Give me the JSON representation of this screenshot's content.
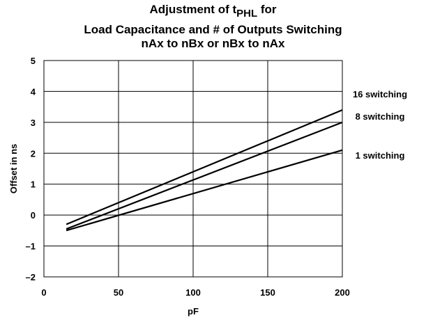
{
  "chart_data": {
    "type": "line",
    "title": {
      "line1_pre": "Adjustment of t",
      "line1_sub": "PHL",
      "line1_post": " for",
      "line2": "Load Capacitance and # of Outputs Switching",
      "line3": "nAx to nBx or nBx to nAx"
    },
    "xlabel": "pF",
    "ylabel": "Offset in ns",
    "xlim": [
      0,
      200
    ],
    "ylim": [
      -2,
      5
    ],
    "xticks": [
      "0",
      "50",
      "100",
      "150",
      "200"
    ],
    "yticks": [
      "–2",
      "–1",
      "0",
      "1",
      "2",
      "3",
      "4",
      "5"
    ],
    "grid": true,
    "series": [
      {
        "name": "16 switching",
        "x": [
          15,
          200
        ],
        "y": [
          -0.3,
          3.4
        ]
      },
      {
        "name": "8 switching",
        "x": [
          15,
          200
        ],
        "y": [
          -0.45,
          3.0
        ]
      },
      {
        "name": "1 switching",
        "x": [
          15,
          200
        ],
        "y": [
          -0.5,
          2.1
        ]
      }
    ]
  }
}
